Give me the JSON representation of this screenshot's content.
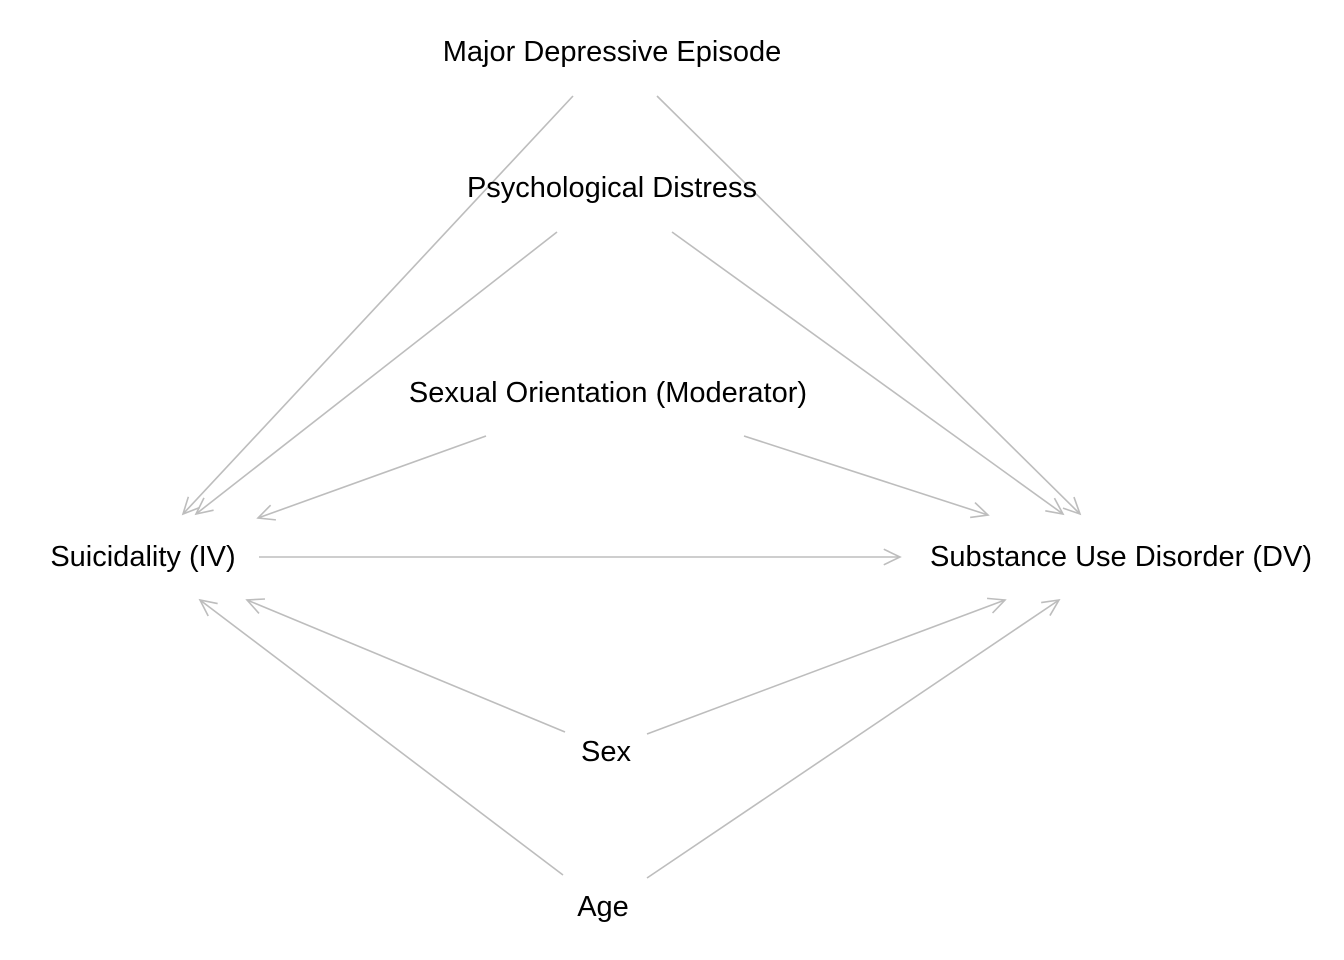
{
  "diagram": {
    "nodes": [
      {
        "id": "mde",
        "label": "Major Depressive Episode"
      },
      {
        "id": "pd",
        "label": "Psychological Distress"
      },
      {
        "id": "so",
        "label": "Sexual Orientation (Moderator)"
      },
      {
        "id": "iv",
        "label": "Suicidality (IV)"
      },
      {
        "id": "dv",
        "label": "Substance Use Disorder (DV)"
      },
      {
        "id": "sex",
        "label": "Sex"
      },
      {
        "id": "age",
        "label": "Age"
      }
    ],
    "edges": [
      {
        "from": "mde",
        "to": "iv"
      },
      {
        "from": "mde",
        "to": "dv"
      },
      {
        "from": "pd",
        "to": "iv"
      },
      {
        "from": "pd",
        "to": "dv"
      },
      {
        "from": "so",
        "to": "iv"
      },
      {
        "from": "so",
        "to": "dv"
      },
      {
        "from": "iv",
        "to": "dv"
      },
      {
        "from": "sex",
        "to": "iv"
      },
      {
        "from": "sex",
        "to": "dv"
      },
      {
        "from": "age",
        "to": "iv"
      },
      {
        "from": "age",
        "to": "dv"
      }
    ],
    "edge_color": "#bdbdbd",
    "text_color": "#000000"
  }
}
